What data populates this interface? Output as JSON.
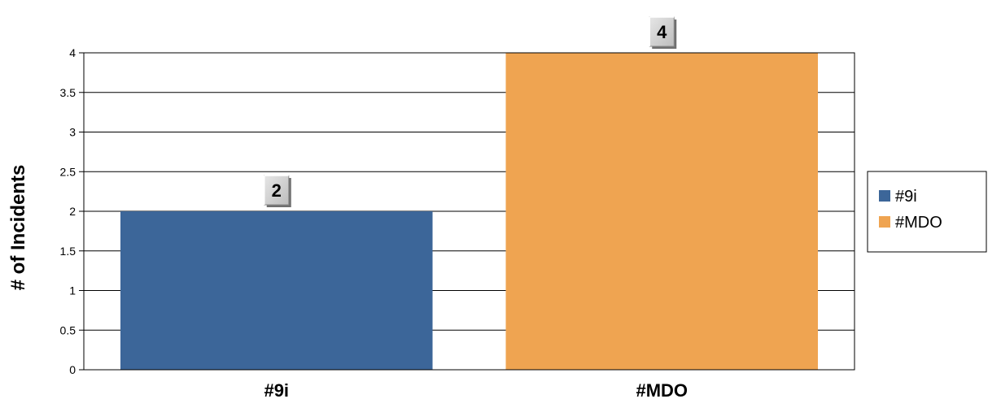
{
  "chart_data": {
    "type": "bar",
    "title": "",
    "xlabel": "",
    "ylabel": "# of Incidents",
    "ylim": [
      0,
      4
    ],
    "yticks": [
      0,
      0.5,
      1,
      1.5,
      2,
      2.5,
      3,
      3.5,
      4
    ],
    "ytick_labels": [
      "0",
      "0.5",
      "1",
      "1.5",
      "2",
      "2.5",
      "3",
      "3.5",
      "4"
    ],
    "grid": true,
    "legend_position": "right",
    "categories": [
      "#9i",
      "#MDO"
    ],
    "values": [
      2,
      4
    ],
    "data_labels": [
      "2",
      "4"
    ],
    "colors": [
      "#3c6699",
      "#efa451"
    ],
    "legend": [
      {
        "label": "#9i",
        "color": "#3c6699"
      },
      {
        "label": "#MDO",
        "color": "#efa451"
      }
    ]
  }
}
